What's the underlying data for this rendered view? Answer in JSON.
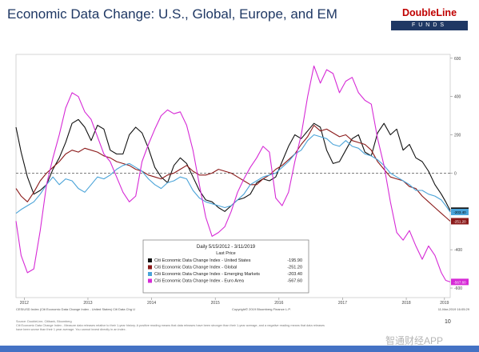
{
  "title": "Economic Data Change: U.S., Global, Europe, and EM",
  "logo": {
    "top": "DoubleLine",
    "bottom": "FUNDS"
  },
  "page_number": "10",
  "footer_source_lines": [
    "Source: DoubleLine, Citibank, Bloomberg",
    "Citi Economic Data Change Index - Measure data releases relative to their 1-year history. A positive reading means that data releases have been stronger than their 1-year average, and a negative reading means that data releases",
    "have been worse than their 1 year average. You cannot invest directly in an index."
  ],
  "watermark": "智通财经APP",
  "chart_data": {
    "type": "line",
    "ylim": [
      -650,
      620
    ],
    "y_ticks": [
      600,
      400,
      200,
      0,
      -200,
      -400,
      -600
    ],
    "y_tick_labels": [
      "600",
      "400",
      "200",
      "0",
      "-200",
      "-400",
      "-600"
    ],
    "x_range": [
      2012.37,
      2019.19
    ],
    "x_tick_labels": [
      {
        "label": "2012",
        "x": 2012.5
      },
      {
        "label": "2013",
        "x": 2013.5
      },
      {
        "label": "2014",
        "x": 2014.5
      },
      {
        "label": "2015",
        "x": 2015.5
      },
      {
        "label": "2016",
        "x": 2016.5
      },
      {
        "label": "2017",
        "x": 2017.5
      },
      {
        "label": "2018",
        "x": 2018.5
      },
      {
        "label": "2019",
        "x": 2019.1
      }
    ],
    "zero_line": true,
    "bloomberg_header": "CESIUSD Index (Citi Economic Data Change Index - United States) Citi Data Chg U",
    "copyright": "Copyright© 2019 Bloomberg Finance L.P.",
    "timestamp": "11-Mar-2019 16:05:29",
    "legend": {
      "header": "Daily 5/15/2012 - 3/11/2019",
      "subheader": "Last Price",
      "placement": "bottom-center"
    },
    "series": [
      {
        "name": "Citi Economic Data Change Index - United States",
        "color": "#111111",
        "last": "-195.90",
        "x": [
          2012.37,
          2012.45,
          2012.55,
          2012.65,
          2012.75,
          2012.85,
          2012.95,
          2013.05,
          2013.15,
          2013.25,
          2013.35,
          2013.45,
          2013.55,
          2013.65,
          2013.75,
          2013.85,
          2013.95,
          2014.05,
          2014.15,
          2014.25,
          2014.35,
          2014.45,
          2014.55,
          2014.65,
          2014.75,
          2014.85,
          2014.95,
          2015.05,
          2015.15,
          2015.25,
          2015.35,
          2015.45,
          2015.55,
          2015.65,
          2015.75,
          2015.85,
          2015.95,
          2016.05,
          2016.15,
          2016.25,
          2016.35,
          2016.45,
          2016.55,
          2016.65,
          2016.75,
          2016.85,
          2016.95,
          2017.05,
          2017.15,
          2017.25,
          2017.35,
          2017.45,
          2017.55,
          2017.65,
          2017.75,
          2017.85,
          2017.95,
          2018.05,
          2018.15,
          2018.25,
          2018.35,
          2018.45,
          2018.55,
          2018.65,
          2018.75,
          2018.85,
          2018.95,
          2019.05,
          2019.12,
          2019.19
        ],
        "y": [
          240,
          110,
          -20,
          -110,
          -90,
          -60,
          20,
          80,
          160,
          260,
          280,
          240,
          170,
          250,
          230,
          120,
          100,
          100,
          200,
          240,
          210,
          130,
          30,
          -20,
          -50,
          40,
          80,
          50,
          -20,
          -90,
          -140,
          -150,
          -180,
          -200,
          -170,
          -140,
          -130,
          -110,
          -50,
          -30,
          -40,
          -20,
          60,
          140,
          200,
          180,
          220,
          260,
          240,
          120,
          50,
          60,
          120,
          180,
          200,
          110,
          90,
          210,
          260,
          200,
          230,
          120,
          150,
          80,
          60,
          10,
          -60,
          -110,
          -150,
          -196
        ]
      },
      {
        "name": "Citi Economic Data Change Index - Global",
        "color": "#8b1a1a",
        "last": "-251.20",
        "x": [
          2012.37,
          2012.45,
          2012.55,
          2012.65,
          2012.75,
          2012.85,
          2012.95,
          2013.05,
          2013.15,
          2013.25,
          2013.35,
          2013.45,
          2013.55,
          2013.65,
          2013.75,
          2013.85,
          2013.95,
          2014.05,
          2014.15,
          2014.25,
          2014.35,
          2014.45,
          2014.55,
          2014.65,
          2014.75,
          2014.85,
          2014.95,
          2015.05,
          2015.15,
          2015.25,
          2015.35,
          2015.45,
          2015.55,
          2015.65,
          2015.75,
          2015.85,
          2015.95,
          2016.05,
          2016.15,
          2016.25,
          2016.35,
          2016.45,
          2016.55,
          2016.65,
          2016.75,
          2016.85,
          2016.95,
          2017.05,
          2017.15,
          2017.25,
          2017.35,
          2017.45,
          2017.55,
          2017.65,
          2017.75,
          2017.85,
          2017.95,
          2018.05,
          2018.15,
          2018.25,
          2018.35,
          2018.45,
          2018.55,
          2018.65,
          2018.75,
          2018.85,
          2018.95,
          2019.05,
          2019.12,
          2019.19
        ],
        "y": [
          -80,
          -120,
          -150,
          -100,
          -40,
          0,
          30,
          60,
          100,
          120,
          110,
          130,
          120,
          110,
          90,
          80,
          60,
          50,
          40,
          20,
          10,
          -10,
          -20,
          -30,
          -10,
          0,
          20,
          40,
          10,
          -10,
          -10,
          0,
          20,
          10,
          0,
          -20,
          -40,
          -60,
          -60,
          -30,
          -10,
          20,
          40,
          70,
          100,
          150,
          190,
          250,
          220,
          230,
          210,
          190,
          200,
          170,
          160,
          150,
          120,
          60,
          20,
          -20,
          -30,
          -40,
          -70,
          -80,
          -120,
          -150,
          -180,
          -210,
          -230,
          -251
        ]
      },
      {
        "name": "Citi Economic Data Change Index - Emerging Markets",
        "color": "#4aa3d8",
        "last": "-203.40",
        "x": [
          2012.37,
          2012.45,
          2012.55,
          2012.65,
          2012.75,
          2012.85,
          2012.95,
          2013.05,
          2013.15,
          2013.25,
          2013.35,
          2013.45,
          2013.55,
          2013.65,
          2013.75,
          2013.85,
          2013.95,
          2014.05,
          2014.15,
          2014.25,
          2014.35,
          2014.45,
          2014.55,
          2014.65,
          2014.75,
          2014.85,
          2014.95,
          2015.05,
          2015.15,
          2015.25,
          2015.35,
          2015.45,
          2015.55,
          2015.65,
          2015.75,
          2015.85,
          2015.95,
          2016.05,
          2016.15,
          2016.25,
          2016.35,
          2016.45,
          2016.55,
          2016.65,
          2016.75,
          2016.85,
          2016.95,
          2017.05,
          2017.15,
          2017.25,
          2017.35,
          2017.45,
          2017.55,
          2017.65,
          2017.75,
          2017.85,
          2017.95,
          2018.05,
          2018.15,
          2018.25,
          2018.35,
          2018.45,
          2018.55,
          2018.65,
          2018.75,
          2018.85,
          2018.95,
          2019.05,
          2019.12,
          2019.19
        ],
        "y": [
          -210,
          -190,
          -170,
          -150,
          -110,
          -60,
          -20,
          -60,
          -30,
          -40,
          -80,
          -100,
          -60,
          -20,
          -30,
          -10,
          20,
          40,
          50,
          30,
          10,
          -30,
          -60,
          -80,
          -50,
          -40,
          -20,
          -30,
          -90,
          -130,
          -150,
          -160,
          -170,
          -180,
          -170,
          -140,
          -110,
          -60,
          -40,
          -20,
          -10,
          0,
          30,
          60,
          100,
          120,
          170,
          200,
          190,
          180,
          150,
          140,
          170,
          140,
          130,
          100,
          90,
          70,
          40,
          0,
          -20,
          -40,
          -60,
          -90,
          -90,
          -110,
          -120,
          -140,
          -170,
          -203
        ]
      },
      {
        "name": "Citi Economic Data Change Index - Euro Area",
        "color": "#d62ad6",
        "last": "-567.60",
        "x": [
          2012.37,
          2012.45,
          2012.55,
          2012.65,
          2012.75,
          2012.85,
          2012.95,
          2013.05,
          2013.15,
          2013.25,
          2013.35,
          2013.45,
          2013.55,
          2013.65,
          2013.75,
          2013.85,
          2013.95,
          2014.05,
          2014.15,
          2014.25,
          2014.35,
          2014.45,
          2014.55,
          2014.65,
          2014.75,
          2014.85,
          2014.95,
          2015.05,
          2015.15,
          2015.25,
          2015.35,
          2015.45,
          2015.55,
          2015.65,
          2015.75,
          2015.85,
          2015.95,
          2016.05,
          2016.15,
          2016.25,
          2016.35,
          2016.45,
          2016.55,
          2016.65,
          2016.75,
          2016.85,
          2016.95,
          2017.05,
          2017.15,
          2017.25,
          2017.35,
          2017.45,
          2017.55,
          2017.65,
          2017.75,
          2017.85,
          2017.95,
          2018.05,
          2018.15,
          2018.25,
          2018.35,
          2018.45,
          2018.55,
          2018.65,
          2018.75,
          2018.85,
          2018.95,
          2019.05,
          2019.12,
          2019.19
        ],
        "y": [
          -250,
          -430,
          -520,
          -500,
          -300,
          -60,
          80,
          200,
          340,
          420,
          400,
          320,
          280,
          190,
          100,
          60,
          -20,
          -100,
          -150,
          -120,
          60,
          150,
          230,
          300,
          330,
          310,
          320,
          250,
          120,
          -60,
          -230,
          -330,
          -310,
          -280,
          -200,
          -100,
          -30,
          30,
          80,
          140,
          110,
          -130,
          -170,
          -100,
          60,
          200,
          400,
          560,
          470,
          540,
          520,
          420,
          480,
          500,
          420,
          380,
          360,
          180,
          40,
          -150,
          -310,
          -350,
          -300,
          -380,
          -450,
          -380,
          -430,
          -520,
          -560,
          -568
        ]
      }
    ]
  }
}
